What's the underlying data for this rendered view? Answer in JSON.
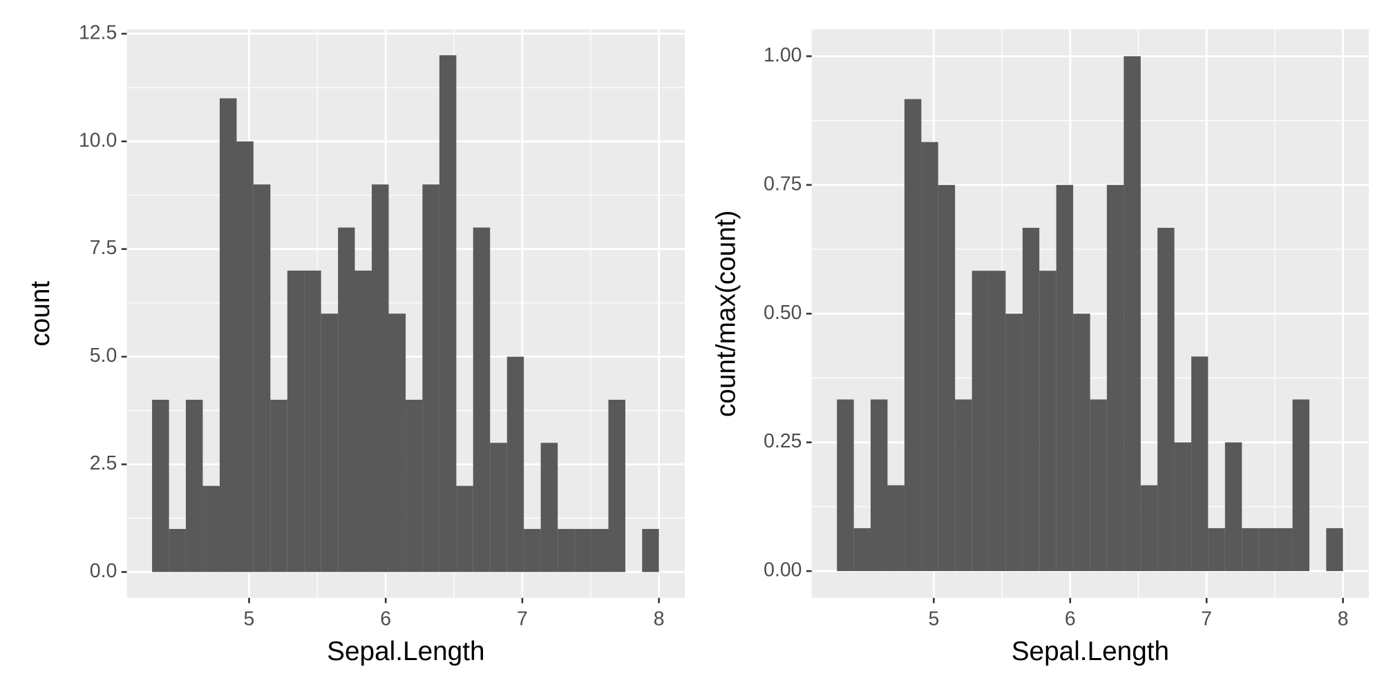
{
  "chart_data": [
    {
      "type": "histogram",
      "x_label": "Sepal.Length",
      "y_label": "count",
      "color": "#595959",
      "background": "#ebebeb",
      "grid": true,
      "bins": [
        4.29,
        4.414,
        4.537,
        4.661,
        4.785,
        4.909,
        5.032,
        5.156,
        5.28,
        5.403,
        5.527,
        5.651,
        5.774,
        5.898,
        6.022,
        6.146,
        6.269,
        6.393,
        6.517,
        6.64,
        6.764,
        6.888,
        7.011,
        7.135,
        7.259,
        7.383,
        7.506,
        7.63,
        7.754,
        7.877,
        8.0
      ],
      "values": [
        4,
        1,
        4,
        2,
        11,
        10,
        9,
        4,
        7,
        7,
        6,
        8,
        7,
        9,
        6,
        4,
        9,
        12,
        2,
        8,
        3,
        5,
        1,
        3,
        1,
        1,
        1,
        4,
        0,
        1
      ],
      "xlim": [
        4.105,
        8.19
      ],
      "xticks": [
        5,
        6,
        7,
        8
      ],
      "ylim": [
        -0.6,
        12.6
      ],
      "yticks": [
        {
          "value": 0,
          "label": "0.0"
        },
        {
          "value": 2.5,
          "label": "2.5"
        },
        {
          "value": 5,
          "label": "5.0"
        },
        {
          "value": 7.5,
          "label": "7.5"
        },
        {
          "value": 10,
          "label": "10.0"
        },
        {
          "value": 12.5,
          "label": "12.5"
        }
      ]
    },
    {
      "type": "histogram",
      "x_label": "Sepal.Length",
      "y_label": "count/max(count)",
      "color": "#595959",
      "background": "#ebebeb",
      "grid": true,
      "bins": [
        4.29,
        4.414,
        4.537,
        4.661,
        4.785,
        4.909,
        5.032,
        5.156,
        5.28,
        5.403,
        5.527,
        5.651,
        5.774,
        5.898,
        6.022,
        6.146,
        6.269,
        6.393,
        6.517,
        6.64,
        6.764,
        6.888,
        7.011,
        7.135,
        7.259,
        7.383,
        7.506,
        7.63,
        7.754,
        7.877,
        8.0
      ],
      "values": [
        0.3333,
        0.0833,
        0.3333,
        0.1667,
        0.9167,
        0.8333,
        0.75,
        0.3333,
        0.5833,
        0.5833,
        0.5,
        0.6667,
        0.5833,
        0.75,
        0.5,
        0.3333,
        0.75,
        1,
        0.1667,
        0.6667,
        0.25,
        0.4167,
        0.0833,
        0.25,
        0.0833,
        0.0833,
        0.0833,
        0.3333,
        0,
        0.0833
      ],
      "xlim": [
        4.105,
        8.19
      ],
      "xticks": [
        5,
        6,
        7,
        8
      ],
      "ylim": [
        -0.052,
        1.052
      ],
      "yticks": [
        {
          "value": 0,
          "label": "0.00"
        },
        {
          "value": 0.25,
          "label": "0.25"
        },
        {
          "value": 0.5,
          "label": "0.50"
        },
        {
          "value": 0.75,
          "label": "0.75"
        },
        {
          "value": 1,
          "label": "1.00"
        }
      ]
    }
  ]
}
